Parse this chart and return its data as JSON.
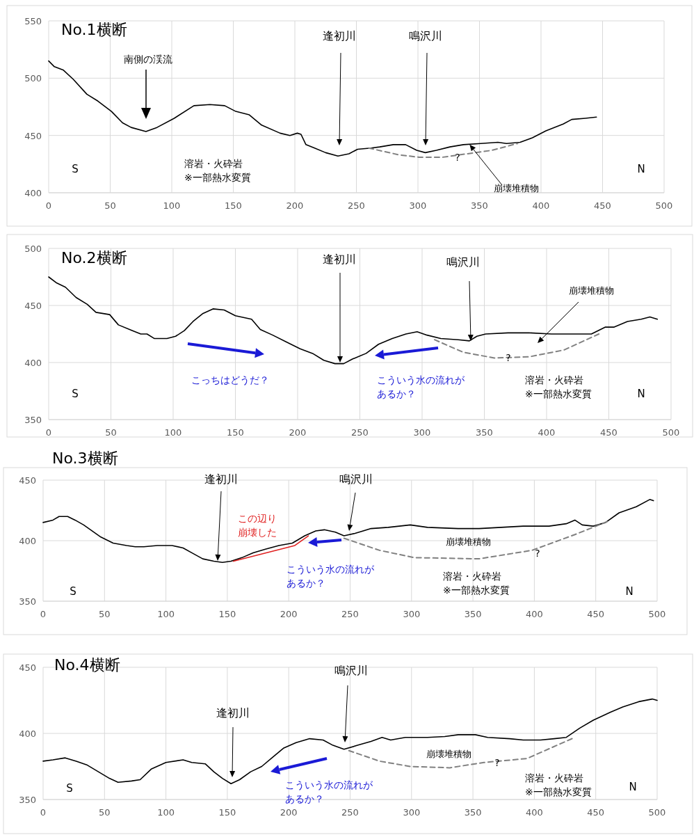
{
  "chart_data": [
    {
      "type": "line",
      "title": "No.1横断",
      "xlim": [
        0,
        500
      ],
      "xticks": [
        0,
        50,
        100,
        150,
        200,
        250,
        300,
        350,
        400,
        450,
        500
      ],
      "ylim": [
        400,
        550
      ],
      "yticks": [
        400,
        450,
        500,
        550
      ],
      "grid": true,
      "series": [
        {
          "color": "#000000",
          "line_style": "solid",
          "x": [
            0,
            4.6,
            12,
            20,
            31,
            40,
            51,
            60,
            67,
            79,
            88,
            102,
            118,
            131,
            143,
            152,
            163,
            173,
            188,
            196,
            202,
            205,
            209,
            216,
            225,
            235,
            244,
            251,
            262,
            269,
            280,
            290,
            299,
            306,
            315,
            326,
            337,
            351,
            365,
            372,
            383,
            393,
            404,
            418,
            425,
            436,
            445
          ],
          "values": [
            515,
            510,
            507,
            499,
            486,
            480,
            471,
            461,
            457,
            453.5,
            457,
            465,
            476,
            477,
            476,
            471,
            468,
            459,
            452,
            450,
            452,
            451,
            442,
            439,
            435,
            432,
            434,
            438,
            439,
            440,
            442,
            442,
            437,
            435,
            437,
            440,
            442,
            443,
            444,
            443,
            444,
            448,
            454,
            460,
            464,
            465,
            466
          ]
        },
        {
          "color": "#808080",
          "line_style": "dashed",
          "x": [
            260,
            285,
            301,
            320,
            340,
            360,
            381
          ],
          "values": [
            439,
            433,
            431,
            431,
            434,
            437,
            443
          ]
        }
      ],
      "annotations": [
        "南側の渓流",
        "逢初川",
        "鳴沢川",
        {
          "text": "崩壊堆積物",
          "x": 342,
          "y": 442
        },
        "?",
        "S",
        "N",
        "溶岩・火砕岩\n※一部熱水変質"
      ]
    },
    {
      "type": "line",
      "title": "No.2横断",
      "xlim": [
        0,
        500
      ],
      "xticks": [
        0,
        50,
        100,
        150,
        200,
        250,
        300,
        350,
        400,
        450,
        500
      ],
      "ylim": [
        350,
        500
      ],
      "yticks": [
        350,
        400,
        450,
        500
      ],
      "grid": true,
      "series": [
        {
          "color": "#000000",
          "line_style": "solid",
          "x": [
            0,
            6,
            13.5,
            22,
            31,
            38,
            49,
            56,
            67,
            74,
            79,
            85,
            95,
            102,
            109,
            116,
            124,
            132,
            141,
            150,
            163,
            170,
            180,
            191,
            202,
            212,
            221,
            230,
            237,
            244,
            255,
            265,
            276,
            287,
            296,
            304,
            315,
            329,
            338,
            344,
            351,
            369,
            386,
            404,
            422,
            436,
            447,
            454,
            465,
            476,
            483,
            489
          ],
          "values": [
            475,
            470,
            466,
            457,
            451,
            444,
            442,
            433,
            428,
            425,
            425,
            421,
            421,
            423,
            428,
            436,
            443,
            447,
            446,
            441,
            438,
            429,
            424,
            418,
            412,
            408,
            402,
            399,
            399,
            403,
            408,
            416,
            421,
            425,
            427,
            424,
            421,
            420,
            419,
            423,
            425,
            426,
            426,
            425,
            425,
            425,
            431,
            431,
            436,
            438,
            440,
            438
          ]
        },
        {
          "color": "#808080",
          "line_style": "dashed",
          "x": [
            310,
            333,
            358,
            386,
            414,
            442
          ],
          "values": [
            420,
            409,
            404,
            405,
            411,
            425
          ]
        }
      ],
      "annotations": [
        "逢初川",
        "鳴沢川",
        "崩壊堆積物",
        "こっちはどうだ？",
        "こういう水の流れがあるか？",
        "?",
        "S",
        "N",
        "溶岩・火砕岩\n※一部熱水変質"
      ]
    },
    {
      "type": "line",
      "title": "No.3横断",
      "xlim": [
        0,
        500
      ],
      "xticks": [
        0,
        50,
        100,
        150,
        200,
        250,
        300,
        350,
        400,
        450,
        500
      ],
      "ylim": [
        350,
        450
      ],
      "yticks": [
        350,
        400,
        450
      ],
      "grid": true,
      "series": [
        {
          "color": "#000000",
          "line_style": "solid",
          "x": [
            0,
            8,
            13,
            20,
            26,
            33,
            40,
            47,
            57,
            68,
            75,
            82,
            93,
            105,
            114,
            121,
            130,
            139,
            146,
            153,
            162,
            171,
            181,
            192,
            203,
            213,
            222,
            229,
            238,
            245,
            254,
            267,
            281,
            299,
            313,
            338,
            355,
            373,
            391,
            412,
            426,
            433,
            439,
            448,
            458,
            469,
            483,
            494,
            497
          ],
          "values": [
            415,
            417,
            420,
            420,
            417,
            413,
            408,
            403,
            398,
            396,
            395,
            395,
            396,
            396,
            394,
            390,
            385,
            383,
            382,
            383,
            386,
            390,
            393,
            396,
            398,
            404,
            408,
            409,
            407,
            404,
            406,
            410,
            411,
            413,
            411,
            410,
            410,
            411,
            412,
            412,
            414,
            417,
            413,
            412,
            415,
            423,
            428,
            434,
            433
          ]
        },
        {
          "color": "#e02020",
          "line_style": "solid",
          "x": [
            155,
            205,
            216
          ],
          "values": [
            383,
            396,
            404
          ]
        },
        {
          "color": "#808080",
          "line_style": "dashed",
          "x": [
            245,
            274,
            302,
            355,
            398,
            433,
            460
          ],
          "values": [
            402,
            392,
            386,
            385,
            392,
            405,
            416
          ]
        }
      ],
      "annotations": [
        "逢初川",
        "鳴沢川",
        "この辺り崩壊した",
        "こういう水の流れがあるか？",
        "崩壊堆積物",
        "?",
        "S",
        "N",
        "溶岩・火砕岩\n※一部熱水変質"
      ]
    },
    {
      "type": "line",
      "title": "No.4横断",
      "xlim": [
        0,
        500
      ],
      "xticks": [
        0,
        50,
        100,
        150,
        200,
        250,
        300,
        350,
        400,
        450,
        500
      ],
      "ylim": [
        350,
        450
      ],
      "yticks": [
        350,
        400,
        450
      ],
      "grid": true,
      "series": [
        {
          "color": "#000000",
          "line_style": "solid",
          "x": [
            0,
            8,
            18,
            27,
            36,
            45,
            54,
            61,
            72,
            79,
            88,
            100,
            114,
            121,
            132,
            139,
            146,
            153,
            160,
            169,
            178,
            187,
            196,
            206,
            217,
            228,
            236,
            245,
            256,
            267,
            276,
            283,
            295,
            313,
            327,
            338,
            352,
            362,
            380,
            391,
            405,
            416,
            426,
            437,
            448,
            462,
            472,
            485,
            496,
            500
          ],
          "values": [
            379,
            380,
            381.5,
            379,
            376,
            371,
            366,
            363,
            364,
            365,
            373,
            378,
            380,
            378,
            377,
            371,
            366,
            362,
            365,
            371,
            375,
            382,
            389,
            393,
            396,
            395,
            391,
            388,
            391,
            394,
            397,
            395,
            397,
            397,
            397.6,
            399,
            399,
            397,
            396,
            395,
            395,
            396,
            397,
            404,
            410,
            416,
            420,
            424,
            426,
            425
          ]
        },
        {
          "color": "#808080",
          "line_style": "dashed",
          "x": [
            249,
            274,
            299,
            331,
            359,
            394,
            433
          ],
          "values": [
            387,
            379,
            375,
            374,
            378,
            381,
            397
          ]
        }
      ],
      "annotations": [
        "逢初川",
        "鳴沢川",
        "こういう水の流れがあるか？",
        "崩壊堆積物",
        "?",
        "S",
        "N",
        "溶岩・火砕岩\n※一部熱水変質"
      ]
    }
  ]
}
